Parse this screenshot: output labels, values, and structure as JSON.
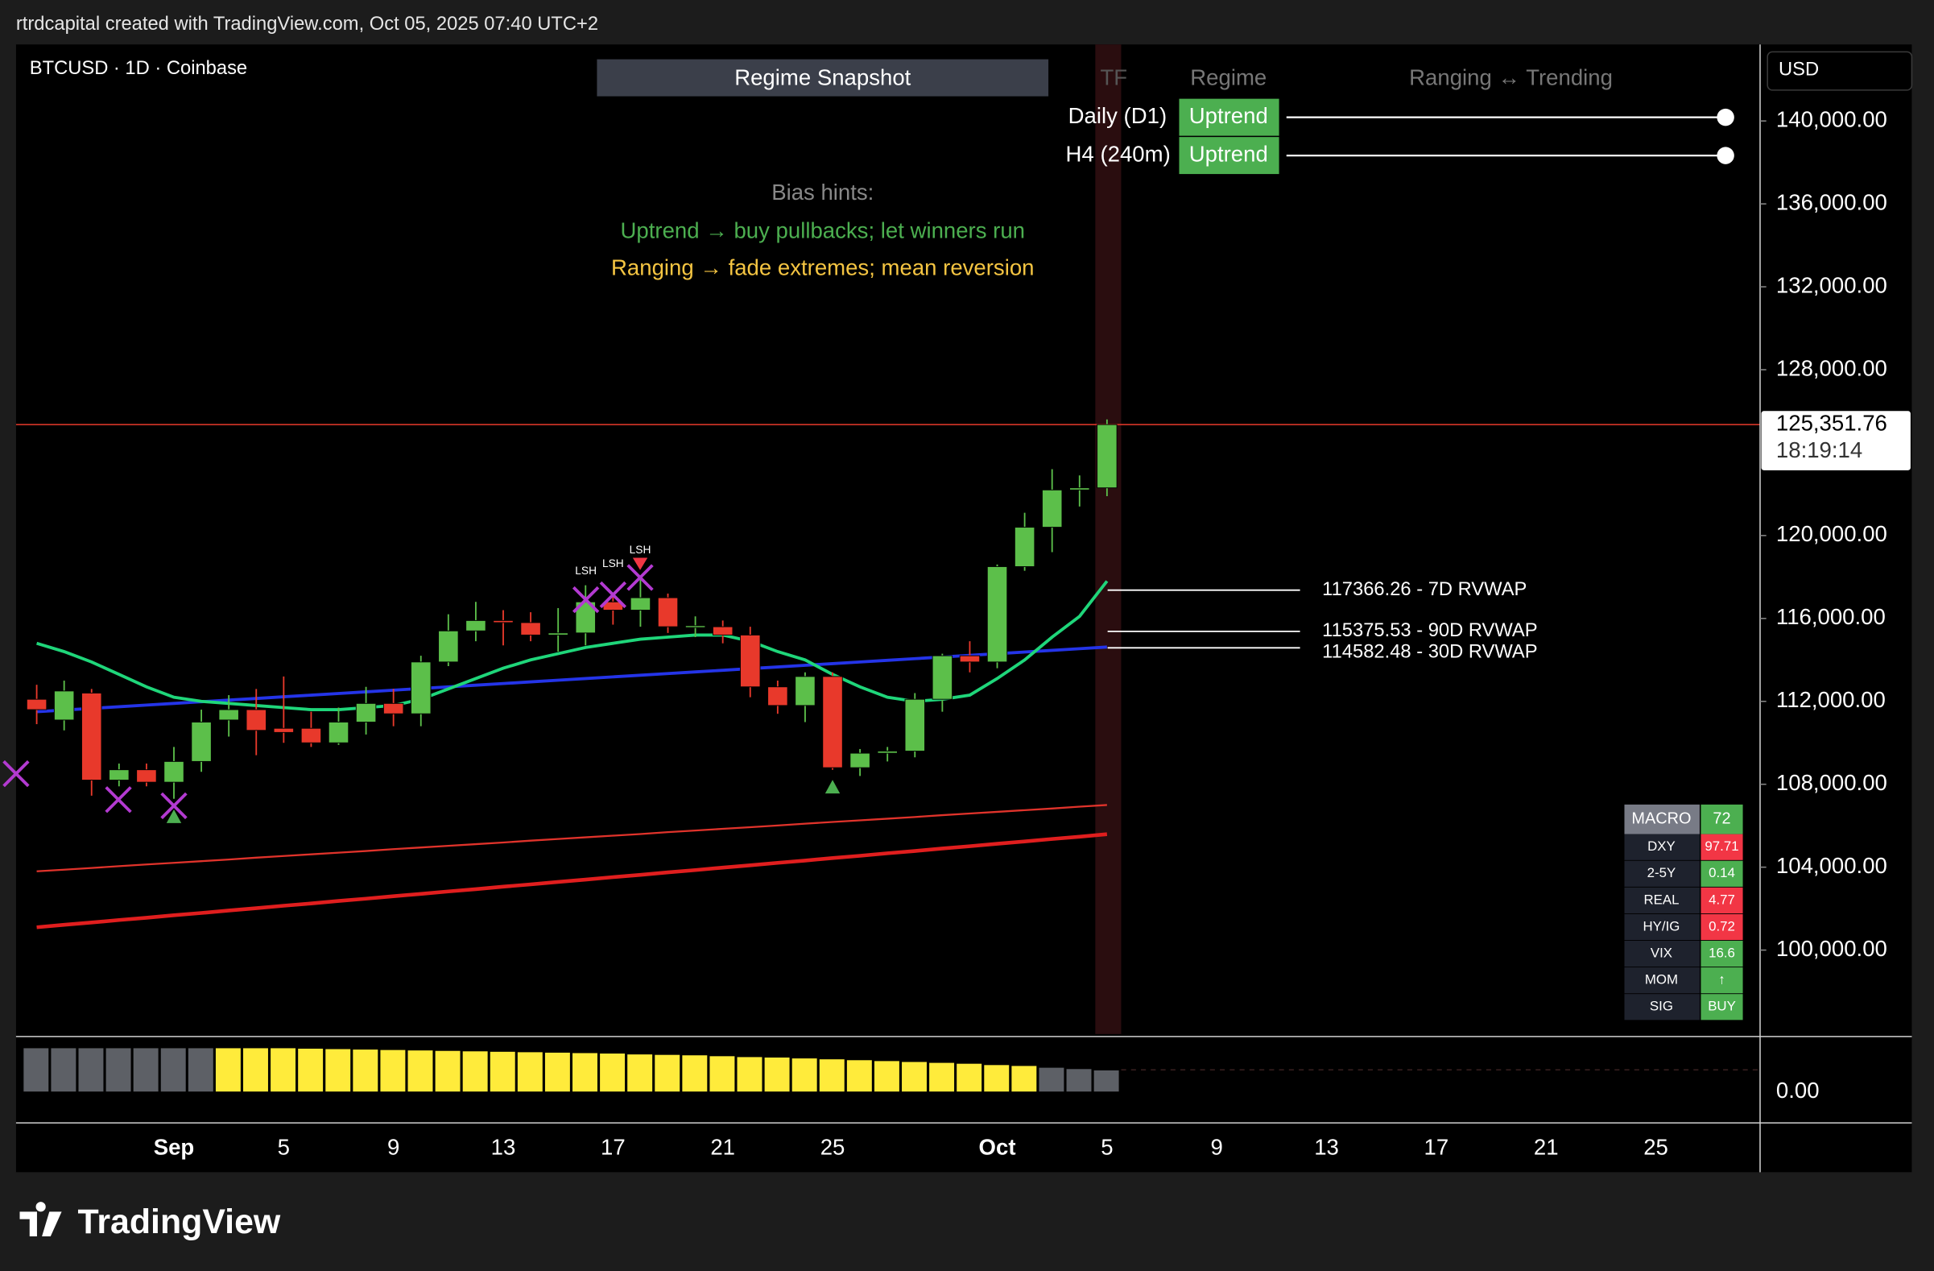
{
  "header": "rtrdcapital created with TradingView.com, Oct 05, 2025 07:40 UTC+2",
  "chart_data": {
    "type": "candlestick",
    "symbol": "BTCUSD · 1D · Coinbase",
    "currency": "USD",
    "categories": [
      null,
      null,
      null,
      null,
      null,
      "Sep",
      null,
      null,
      null,
      "5",
      null,
      null,
      null,
      "9",
      null,
      null,
      null,
      "13",
      null,
      null,
      null,
      "17",
      null,
      null,
      null,
      "21",
      null,
      null,
      null,
      "25",
      null,
      null,
      null,
      null,
      null,
      "Oct",
      null,
      null,
      null,
      "5",
      null,
      null,
      null,
      "9",
      null,
      null,
      null,
      "13",
      null,
      null,
      null,
      "17",
      null,
      null,
      null,
      "21",
      null,
      null,
      null,
      "25",
      null,
      null,
      null
    ],
    "ohlc": [
      [
        112100,
        112800,
        110900,
        111600
      ],
      [
        111100,
        113000,
        110600,
        112500
      ],
      [
        112400,
        112600,
        107450,
        108200
      ],
      [
        108200,
        109000,
        107900,
        108700
      ],
      [
        108700,
        109000,
        107900,
        108100
      ],
      [
        108100,
        109800,
        107300,
        109100
      ],
      [
        109100,
        111600,
        108600,
        111000
      ],
      [
        111100,
        112300,
        110300,
        111600
      ],
      [
        111600,
        112600,
        109400,
        110600
      ],
      [
        110700,
        113200,
        110000,
        110500
      ],
      [
        110700,
        111500,
        109800,
        110000
      ],
      [
        110000,
        111700,
        109900,
        111000
      ],
      [
        111000,
        112700,
        110400,
        111900
      ],
      [
        111900,
        112600,
        110800,
        111400
      ],
      [
        111400,
        114200,
        110800,
        113900
      ],
      [
        113900,
        116200,
        113700,
        115400
      ],
      [
        115400,
        116800,
        114900,
        115900
      ],
      [
        115900,
        116400,
        114700,
        115800
      ],
      [
        115800,
        116300,
        114900,
        115200
      ],
      [
        115200,
        116500,
        114400,
        115300
      ],
      [
        115300,
        117600,
        114700,
        116800
      ],
      [
        116800,
        117200,
        115700,
        116400
      ],
      [
        116400,
        117900,
        115600,
        117000
      ],
      [
        117000,
        117200,
        115300,
        115600
      ],
      [
        115600,
        116100,
        115100,
        115650
      ],
      [
        115600,
        115900,
        114800,
        115200
      ],
      [
        115200,
        115600,
        112200,
        112700
      ],
      [
        112700,
        113000,
        111400,
        111800
      ],
      [
        111800,
        113400,
        111000,
        113200
      ],
      [
        113200,
        113400,
        108700,
        108800
      ],
      [
        108800,
        109700,
        108400,
        109500
      ],
      [
        109500,
        109800,
        109100,
        109600
      ],
      [
        109600,
        112400,
        109300,
        112100
      ],
      [
        112100,
        114300,
        111500,
        114200
      ],
      [
        114200,
        114900,
        113400,
        113900
      ],
      [
        113900,
        118600,
        113600,
        118500
      ],
      [
        118500,
        121100,
        118300,
        120400
      ],
      [
        120400,
        123200,
        119200,
        122200
      ],
      [
        122200,
        122900,
        121400,
        122300
      ],
      [
        122300,
        125600,
        121900,
        125351.76
      ]
    ],
    "up_color": "#5cbf4a",
    "down_color": "#e8392b",
    "lines": [
      {
        "color": "#e01e1e",
        "width": 3,
        "values": [
          101100,
          101220,
          101330,
          101450,
          101560,
          101680,
          101790,
          101910,
          102020,
          102140,
          102250,
          102370,
          102480,
          102600,
          102710,
          102830,
          102940,
          103060,
          103170,
          103290,
          103400,
          103520,
          103630,
          103750,
          103860,
          103980,
          104090,
          104210,
          104320,
          104440,
          104550,
          104670,
          104780,
          104900,
          105010,
          105130,
          105240,
          105360,
          105470,
          105590
        ]
      },
      {
        "color": "#e0332b",
        "width": 1.5,
        "values": [
          103800,
          103880,
          103960,
          104050,
          104130,
          104210,
          104290,
          104370,
          104460,
          104540,
          104620,
          104700,
          104780,
          104870,
          104950,
          105030,
          105110,
          105190,
          105280,
          105360,
          105440,
          105520,
          105600,
          105690,
          105770,
          105850,
          105930,
          106010,
          106100,
          106180,
          106260,
          106340,
          106420,
          106510,
          106590,
          106670,
          106750,
          106830,
          106920,
          107000
        ]
      },
      {
        "color": "#2434e8",
        "width": 2.5,
        "values": [
          111500,
          111580,
          111660,
          111740,
          111820,
          111900,
          111980,
          112060,
          112140,
          112220,
          112300,
          112380,
          112460,
          112540,
          112620,
          112700,
          112780,
          112860,
          112940,
          113020,
          113100,
          113180,
          113260,
          113340,
          113420,
          113500,
          113580,
          113660,
          113740,
          113820,
          113900,
          113980,
          114060,
          114140,
          114220,
          114300,
          114380,
          114460,
          114540,
          114620
        ]
      },
      {
        "color": "#1fd67a",
        "width": 2.5,
        "values": [
          114800,
          114400,
          113900,
          113300,
          112700,
          112200,
          112000,
          111900,
          111800,
          111700,
          111600,
          111600,
          111700,
          111800,
          112100,
          112600,
          113100,
          113600,
          114000,
          114300,
          114600,
          114800,
          115000,
          115100,
          115200,
          115200,
          114900,
          114400,
          114000,
          113300,
          112700,
          112200,
          112000,
          112100,
          112300,
          113100,
          114000,
          115100,
          116100,
          117800
        ]
      }
    ],
    "ylim": [
      95950,
      143690
    ],
    "yticks": [
      {
        "value": 140000,
        "label": "140,000.00"
      },
      {
        "value": 136000,
        "label": "136,000.00"
      },
      {
        "value": 132000,
        "label": "132,000.00"
      },
      {
        "value": 128000,
        "label": "128,000.00"
      },
      {
        "value": 120000,
        "label": "120,000.00"
      },
      {
        "value": 116000,
        "label": "116,000.00"
      },
      {
        "value": 112000,
        "label": "112,000.00"
      },
      {
        "value": 108000,
        "label": "108,000.00"
      },
      {
        "value": 104000,
        "label": "104,000.00"
      },
      {
        "value": 100000,
        "label": "100,000.00"
      }
    ],
    "last_price": {
      "value": 125351.76,
      "label": "125,351.76"
    },
    "countdown": "18:19:14",
    "rvwap": [
      {
        "value": 117366.26,
        "label": "117366.26 - 7D RVWAP"
      },
      {
        "value": 115375.53,
        "label": "115375.53 - 90D RVWAP"
      },
      {
        "value": 114582.48,
        "label": "114582.48 - 30D RVWAP"
      }
    ],
    "markers": [
      "LSH",
      "LSH",
      "LSH"
    ],
    "oscillator": {
      "values": [
        1.0,
        1.0,
        1.0,
        1.0,
        1.0,
        1.0,
        1.0,
        1.0,
        1.0,
        1.0,
        0.99,
        0.98,
        0.97,
        0.96,
        0.95,
        0.94,
        0.93,
        0.92,
        0.91,
        0.9,
        0.89,
        0.88,
        0.86,
        0.85,
        0.84,
        0.82,
        0.8,
        0.79,
        0.77,
        0.75,
        0.73,
        0.71,
        0.69,
        0.67,
        0.65,
        0.62,
        0.6,
        0.56,
        0.53,
        0.5
      ],
      "colors": [
        "#5d6066",
        "#5d6066",
        "#5d6066",
        "#5d6066",
        "#5d6066",
        "#5d6066",
        "#5d6066",
        "#ffeb3b",
        "#ffeb3b",
        "#ffeb3b",
        "#ffeb3b",
        "#ffeb3b",
        "#ffeb3b",
        "#ffeb3b",
        "#ffeb3b",
        "#ffeb3b",
        "#ffeb3b",
        "#ffeb3b",
        "#ffeb3b",
        "#ffeb3b",
        "#ffeb3b",
        "#ffeb3b",
        "#ffeb3b",
        "#ffeb3b",
        "#ffeb3b",
        "#ffeb3b",
        "#ffeb3b",
        "#ffeb3b",
        "#ffeb3b",
        "#ffeb3b",
        "#ffeb3b",
        "#ffeb3b",
        "#ffeb3b",
        "#ffeb3b",
        "#ffeb3b",
        "#ffeb3b",
        "#ffeb3b",
        "#5d6066",
        "#5d6066",
        "#5d6066"
      ],
      "ylim": [
        -0.64,
        1.17
      ],
      "yticks": [
        {
          "value": 0,
          "label": "0.00"
        }
      ]
    }
  },
  "regime_snapshot": {
    "title": "Regime Snapshot",
    "columns": [
      "TF",
      "Regime",
      "Ranging ↔ Trending"
    ],
    "rows": [
      {
        "tf": "Daily (D1)",
        "regime": "Uptrend"
      },
      {
        "tf": "H4 (240m)",
        "regime": "Uptrend"
      }
    ],
    "bias_title": "Bias hints:",
    "bias_hints": [
      {
        "text": "Uptrend → buy pullbacks; let winners run",
        "color": "#4caf50"
      },
      {
        "text": "Ranging → fade extremes; mean reversion",
        "color": "#f5c542"
      }
    ]
  },
  "macro": {
    "rows": [
      {
        "label": "MACRO",
        "value": "72",
        "color": "#4caf50"
      },
      {
        "label": "DXY",
        "value": "97.71",
        "color": "#f23645"
      },
      {
        "label": "2-5Y",
        "value": "0.14",
        "color": "#4caf50"
      },
      {
        "label": "REAL",
        "value": "4.77",
        "color": "#f23645"
      },
      {
        "label": "HY/IG",
        "value": "0.72",
        "color": "#f23645"
      },
      {
        "label": "VIX",
        "value": "16.6",
        "color": "#4caf50"
      },
      {
        "label": "MOM",
        "value": "↑",
        "color": "#4caf50"
      },
      {
        "label": "SIG",
        "value": "BUY",
        "color": "#4caf50"
      }
    ]
  },
  "footer": "TradingView"
}
